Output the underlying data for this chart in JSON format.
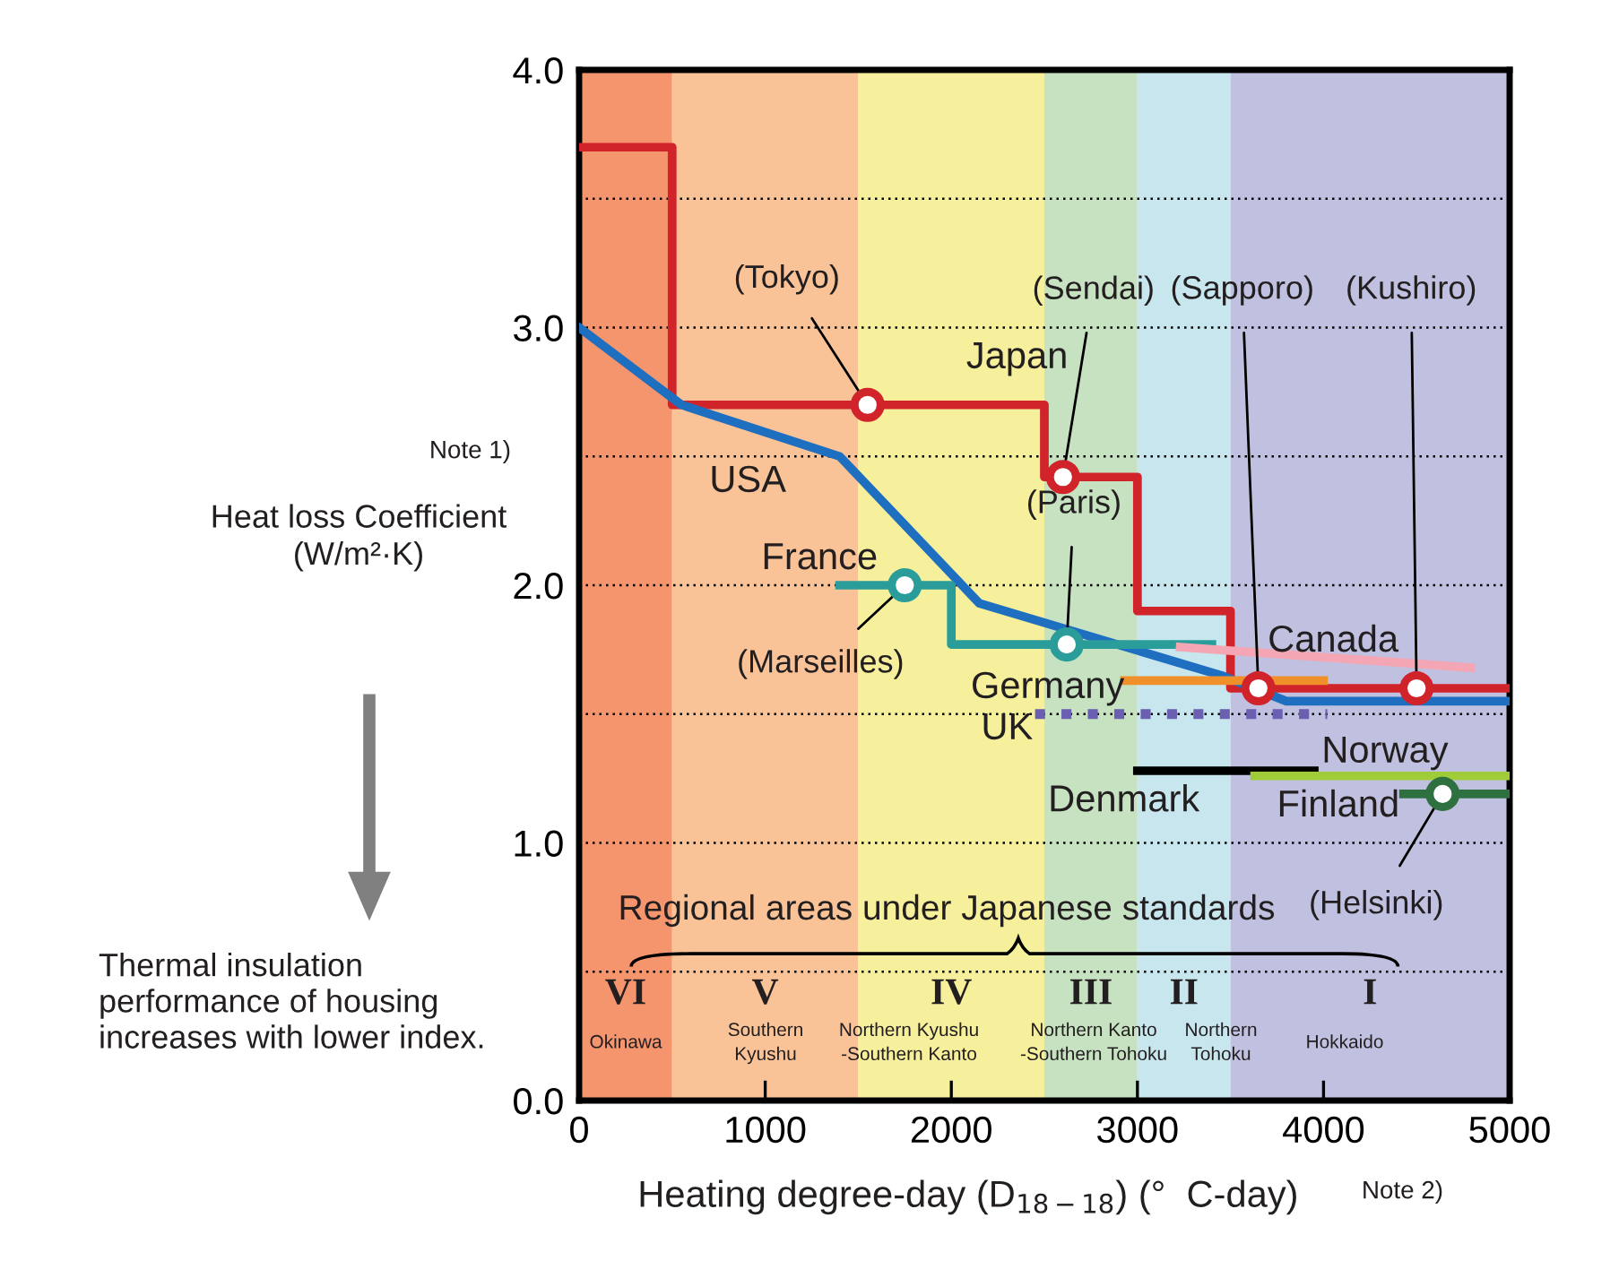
{
  "chart_data": {
    "type": "line",
    "xlabel": "Heating degree-day (D$_{18−18}$) (°  C-day)",
    "ylabel": "Heat loss Coefficient\n(W/m²·K)",
    "xlim": [
      0,
      5000
    ],
    "ylim": [
      0,
      4
    ],
    "xticks": [
      0,
      1000,
      2000,
      3000,
      4000,
      5000
    ],
    "yticks": [
      {
        "value": 0,
        "label": "0.0"
      },
      {
        "value": 0.5,
        "label": null
      },
      {
        "value": 1,
        "label": "1.0"
      },
      {
        "value": 1.5,
        "label": null
      },
      {
        "value": 2,
        "label": "2.0"
      },
      {
        "value": 2.5,
        "label": null
      },
      {
        "value": 3,
        "label": "3.0"
      },
      {
        "value": 3.5,
        "label": null
      },
      {
        "value": 4,
        "label": "4.0"
      }
    ],
    "grid": "y",
    "legend": false,
    "bands": [
      {
        "axis": "x",
        "from": 0,
        "to": 500,
        "color": "#f4956e",
        "label": "VI"
      },
      {
        "axis": "x",
        "from": 500,
        "to": 1500,
        "color": "#f9c397",
        "label": "V"
      },
      {
        "axis": "x",
        "from": 1500,
        "to": 2500,
        "color": "#f6ef9b",
        "label": "IV"
      },
      {
        "axis": "x",
        "from": 2500,
        "to": 3000,
        "color": "#c6e2c1",
        "label": "III"
      },
      {
        "axis": "x",
        "from": 3000,
        "to": 3500,
        "color": "#c7e6ee",
        "label": "II"
      },
      {
        "axis": "x",
        "from": 3500,
        "to": 5000,
        "color": "#c0c1e0",
        "label": "I"
      }
    ],
    "series": [
      {
        "name": "Japan",
        "type": "step",
        "color": "#d0232a",
        "x": [
          0,
          500,
          2500,
          3000,
          3500,
          5000
        ],
        "values": [
          3.7,
          2.7,
          2.42,
          1.9,
          1.6,
          1.6
        ]
      },
      {
        "type": "scatter",
        "marker": "circle",
        "color": "#d0232a",
        "x": [
          1550,
          2600,
          3650,
          4500
        ],
        "values": [
          2.7,
          2.42,
          1.6,
          1.6
        ]
      },
      {
        "name": "USA",
        "color": "#1f6fc0",
        "x": [
          0,
          550,
          1400,
          2150,
          3450,
          3800,
          5000
        ],
        "values": [
          3.0,
          2.7,
          2.5,
          1.93,
          1.65,
          1.55,
          1.55
        ]
      },
      {
        "name": "France",
        "type": "step",
        "color": "#2a9d9a",
        "x": [
          1400,
          2000,
          3400
        ],
        "values": [
          2.0,
          1.77,
          1.77
        ]
      },
      {
        "type": "scatter",
        "marker": "circle",
        "color": "#2a9d9a",
        "x": [
          1750,
          2620
        ],
        "values": [
          2.0,
          1.77
        ]
      },
      {
        "name": "Germany",
        "color": "#f0902a",
        "x": [
          2930,
          4000
        ],
        "values": [
          1.63,
          1.63
        ]
      },
      {
        "name": "Canada",
        "color": "#f4a6b4",
        "x": [
          3230,
          4790
        ],
        "values": [
          1.76,
          1.68
        ]
      },
      {
        "name": "UK",
        "color": "#6a5fb0",
        "line_style": "dotted",
        "x": [
          2450,
          4020
        ],
        "values": [
          1.5,
          1.5
        ]
      },
      {
        "name": "Denmark",
        "color": "#000000",
        "x": [
          3000,
          3950
        ],
        "values": [
          1.28,
          1.28
        ]
      },
      {
        "name": "Norway",
        "color": "#a0cc3a",
        "x": [
          3630,
          5000
        ],
        "values": [
          1.26,
          1.26
        ]
      },
      {
        "name": "Finland",
        "color": "#2f7040",
        "x": [
          4430,
          5000
        ],
        "values": [
          1.19,
          1.19
        ]
      },
      {
        "type": "scatter",
        "marker": "circle",
        "color": "#2f7040",
        "x": [
          4640
        ],
        "values": [
          1.19
        ]
      }
    ],
    "annotations": [
      {
        "text": "(Tokyo)",
        "x": 1550,
        "y": 2.7
      },
      {
        "text": "(Sendai)",
        "x": 2600,
        "y": 2.42
      },
      {
        "text": "(Sapporo)",
        "x": 3650,
        "y": 1.6
      },
      {
        "text": "(Kushiro)",
        "x": 4500,
        "y": 1.6
      },
      {
        "text": "(Paris)",
        "x": 2620,
        "y": 1.77
      },
      {
        "text": "(Marseilles)",
        "x": 1750,
        "y": 2.0
      },
      {
        "text": "(Helsinki)",
        "x": 4640,
        "y": 1.19
      },
      "Note 1)",
      "Thermal insulation\nperformance of housing\nincreases with lower index.",
      "Regional areas under Japanese standards",
      "Note 2)",
      "Okinawa",
      "Southern\nKyushu",
      "Northern Kyushu\n-Southern Kanto",
      "Northern Kanto\n-Southern Tohoku",
      "Northern\nTohoku",
      "Hokkaido"
    ]
  }
}
